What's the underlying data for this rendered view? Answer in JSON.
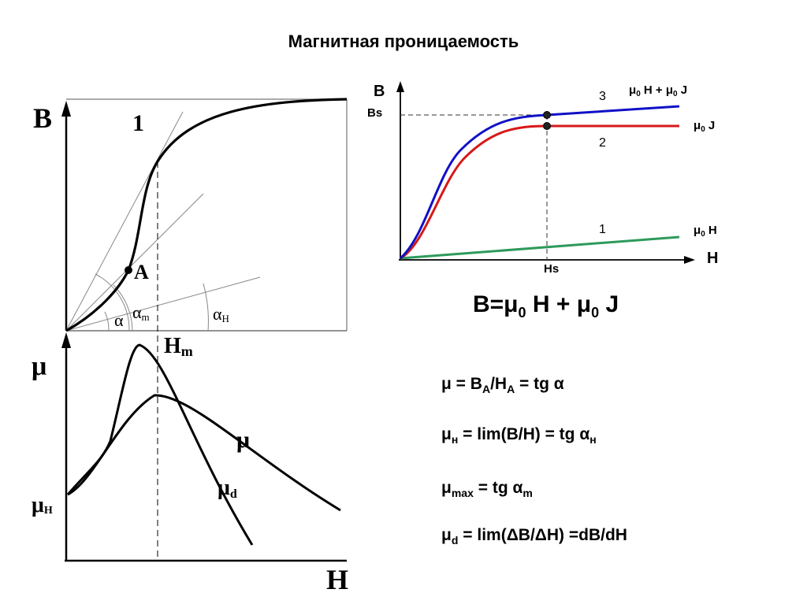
{
  "title": "Магнитная проницаемость",
  "left_diagram": {
    "upper": {
      "y_axis": "B",
      "curve_label": "1",
      "point_label": "A",
      "angles": {
        "alpha": "α",
        "alpha_m": "α",
        "alpha_m_sub": "m",
        "alpha_h": "α",
        "alpha_h_sub": "H"
      }
    },
    "lower": {
      "y_axis": "μ",
      "x_axis": "H",
      "hm": "H",
      "hm_sub": "m",
      "mu_curve": "μ",
      "mu_d": "μ",
      "mu_d_sub": "d",
      "mu_h": "μ",
      "mu_h_sub": "H"
    }
  },
  "right_chart": {
    "y_axis": "B",
    "x_axis": "H",
    "bs": "Bs",
    "hs": "Hs",
    "curves": [
      {
        "number": "3",
        "label_mu": "μ",
        "label_sub": "0",
        "label_rest": " H + μ",
        "label_sub2": "0",
        "label_tail": " J",
        "color": "#1010c8"
      },
      {
        "number": "2",
        "label_mu": "μ",
        "label_sub": "0",
        "label_rest": " J",
        "color": "#d81818"
      },
      {
        "number": "1",
        "label_mu": "μ",
        "label_sub": "0",
        "label_rest": " H",
        "color": "#2e9a5c"
      }
    ]
  },
  "formulas": {
    "main": {
      "a": "B=μ",
      "s1": "0",
      "b": " H + μ",
      "s2": "0",
      "c": " J"
    },
    "f1": {
      "a": "μ = B",
      "s1": "A",
      "b": "/H",
      "s2": "A",
      "c": " = tg α"
    },
    "f2": {
      "a": "μ",
      "s1": "н",
      "b": " = lim(B/H) = tg α",
      "s2": "н"
    },
    "f3": {
      "a": "μ",
      "s1": "max",
      "b": " = tg α",
      "s2": "m"
    },
    "f4": {
      "a": "μ",
      "s1": "d",
      "b": " =  lim(ΔB/ΔH) =dB/dH"
    }
  }
}
